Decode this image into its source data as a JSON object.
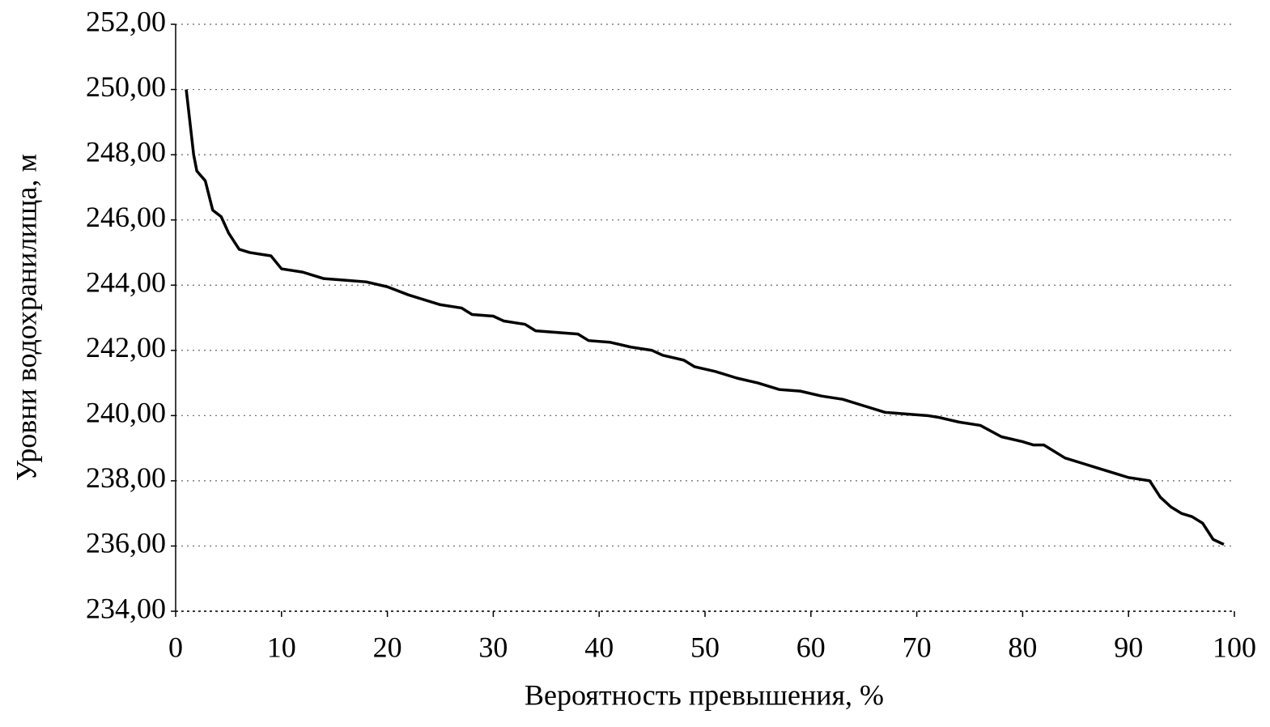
{
  "chart_data": {
    "type": "line",
    "x_label": "Вероятность превышения, %",
    "y_label": "Уровни водохранилища, м",
    "xlim": [
      0,
      100
    ],
    "xticks": [
      0,
      10,
      20,
      30,
      40,
      50,
      60,
      70,
      80,
      90,
      100
    ],
    "ylim": [
      234,
      252
    ],
    "yticks": [
      {
        "value": 234,
        "label": "234,00"
      },
      {
        "value": 236,
        "label": "236,00"
      },
      {
        "value": 238,
        "label": "238,00"
      },
      {
        "value": 240,
        "label": "240,00"
      },
      {
        "value": 242,
        "label": "242,00"
      },
      {
        "value": 244,
        "label": "244,00"
      },
      {
        "value": 246,
        "label": "246,00"
      },
      {
        "value": 248,
        "label": "248,00"
      },
      {
        "value": 250,
        "label": "250,00"
      },
      {
        "value": 252,
        "label": "252,00"
      }
    ],
    "grid": true,
    "series": [
      {
        "color": "#000000",
        "x": [
          1,
          1.7,
          2,
          2.8,
          3.5,
          4.3,
          5,
          6,
          7,
          8,
          9,
          10,
          12,
          14,
          16,
          18,
          20,
          22,
          25,
          27,
          28,
          30,
          31,
          33,
          34,
          36,
          38,
          39,
          41,
          43,
          45,
          46,
          48,
          49,
          51,
          53,
          55,
          57,
          59,
          61,
          63,
          65,
          67,
          69,
          71,
          72,
          74,
          76,
          78,
          80,
          81,
          82,
          84,
          86,
          87,
          89,
          90,
          92,
          93,
          94,
          95,
          96,
          97,
          98,
          99
        ],
        "values": [
          250.0,
          248.0,
          247.5,
          247.2,
          246.3,
          246.1,
          245.6,
          245.1,
          245.0,
          244.95,
          244.9,
          244.5,
          244.4,
          244.2,
          244.15,
          244.1,
          243.95,
          243.7,
          243.4,
          243.3,
          243.1,
          243.05,
          242.9,
          242.8,
          242.6,
          242.55,
          242.5,
          242.3,
          242.25,
          242.1,
          242.0,
          241.85,
          241.7,
          241.5,
          241.35,
          241.15,
          241.0,
          240.8,
          240.75,
          240.6,
          240.5,
          240.3,
          240.1,
          240.05,
          240.0,
          239.95,
          239.8,
          239.7,
          239.35,
          239.2,
          239.1,
          239.1,
          238.7,
          238.5,
          238.4,
          238.2,
          238.1,
          238.0,
          237.5,
          237.2,
          237.0,
          236.9,
          236.7,
          236.2,
          236.05
        ]
      }
    ]
  }
}
